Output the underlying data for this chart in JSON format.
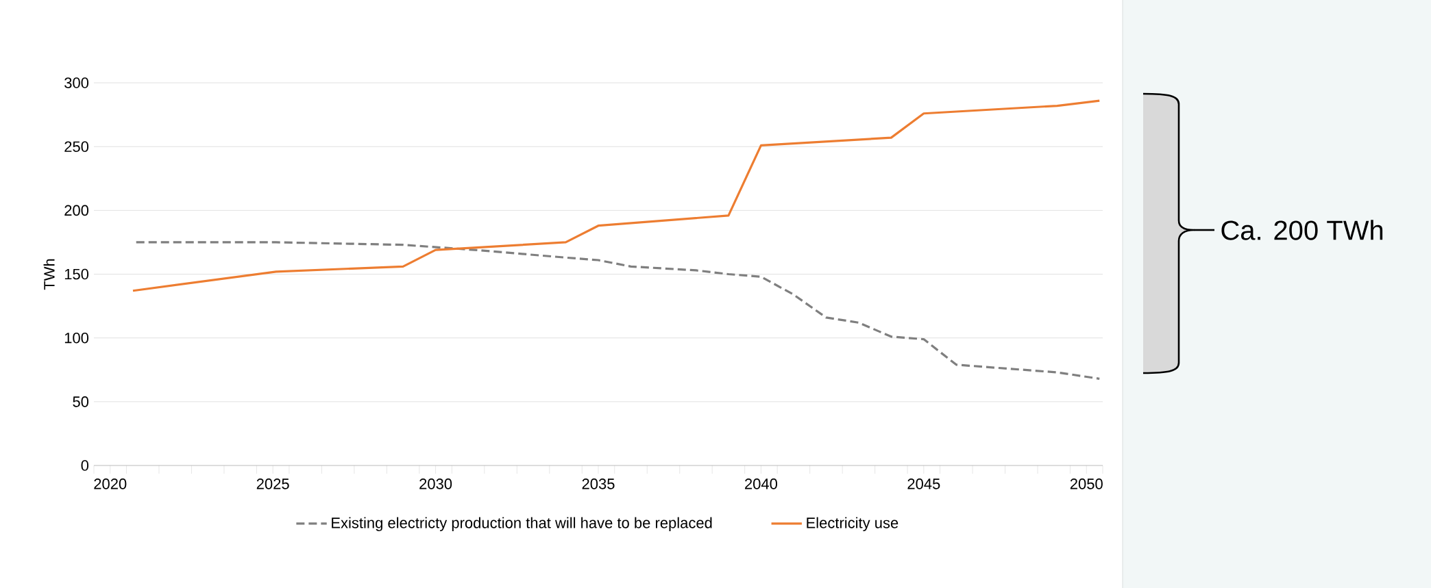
{
  "chart_data": {
    "type": "line",
    "ylabel": "TWh",
    "xlim": [
      2019.5,
      2050.5
    ],
    "ylim": [
      0,
      300
    ],
    "xticks": [
      2020,
      2025,
      2030,
      2035,
      2040,
      2045,
      2050
    ],
    "yticks": [
      0,
      50,
      100,
      150,
      200,
      250,
      300
    ],
    "grid": "y",
    "legend": "bottom",
    "annotations": [
      "Ca. 200 TWh"
    ],
    "series": [
      {
        "name": "Existing electricty production that will have to be replaced",
        "color": "#7f7f7f",
        "line_style": "dashed",
        "x": [
          2020.8,
          2025.1,
          2029,
          2031.2,
          2034,
          2035,
          2036,
          2038,
          2039,
          2040,
          2041,
          2042,
          2043,
          2044,
          2045,
          2046,
          2049.1,
          2050.4
        ],
        "values": [
          175,
          175,
          173,
          169,
          163,
          161,
          156,
          153,
          150,
          148,
          134,
          116,
          112,
          101,
          99,
          79,
          73,
          68
        ]
      },
      {
        "name": "Electricity use",
        "color": "#ed7d31",
        "line_style": "solid",
        "x": [
          2020.7,
          2025.1,
          2029,
          2030,
          2034,
          2035,
          2039,
          2040,
          2044,
          2045,
          2049.1,
          2050.4
        ],
        "values": [
          137,
          152,
          156,
          169,
          175,
          188,
          196,
          251,
          257,
          276,
          282,
          286
        ]
      }
    ]
  }
}
